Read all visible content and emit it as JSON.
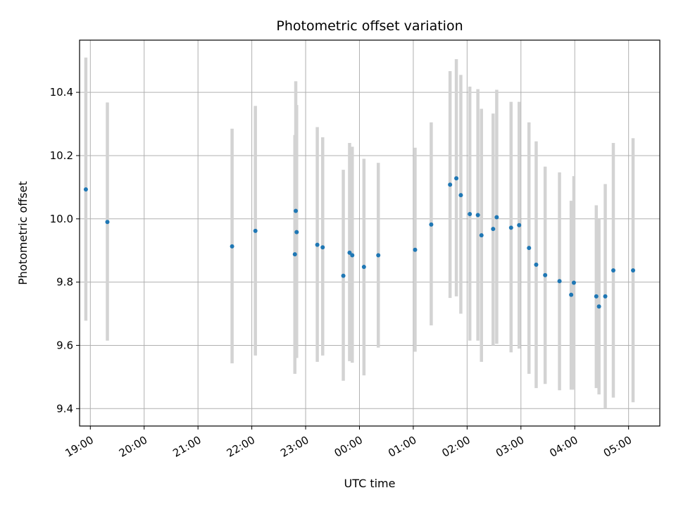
{
  "chart_data": {
    "type": "scatter",
    "title": "Photometric offset variation",
    "xlabel": "UTC time",
    "ylabel": "Photometric offset",
    "x_ticks": [
      "19:00",
      "20:00",
      "21:00",
      "22:00",
      "23:00",
      "00:00",
      "01:00",
      "02:00",
      "03:00",
      "04:00",
      "05:00"
    ],
    "x_tick_hours": [
      0,
      1,
      2,
      3,
      4,
      5,
      6,
      7,
      8,
      9,
      10
    ],
    "y_ticks": [
      "9.4",
      "9.6",
      "9.8",
      "10.0",
      "10.2",
      "10.4"
    ],
    "y_tick_values": [
      9.4,
      9.6,
      9.8,
      10.0,
      10.2,
      10.4
    ],
    "xlim_hours": [
      -0.2,
      10.58
    ],
    "ylim": [
      9.345,
      10.565
    ],
    "grid": true,
    "point_color": "#1f77b4",
    "errorbar_color": "#d3d3d3",
    "points": [
      {
        "t": "18:55",
        "y": 10.093,
        "low": 9.678,
        "high": 10.51
      },
      {
        "t": "19:19",
        "y": 9.99,
        "low": 9.615,
        "high": 10.368
      },
      {
        "t": "21:38",
        "y": 9.913,
        "low": 9.543,
        "high": 10.285
      },
      {
        "t": "22:04",
        "y": 9.962,
        "low": 9.568,
        "high": 10.357
      },
      {
        "t": "22:48",
        "y": 9.888,
        "low": 9.51,
        "high": 10.265
      },
      {
        "t": "22:49",
        "y": 10.025,
        "low": 9.655,
        "high": 10.435
      },
      {
        "t": "22:50",
        "y": 9.958,
        "low": 9.56,
        "high": 10.36
      },
      {
        "t": "23:13",
        "y": 9.918,
        "low": 9.548,
        "high": 10.29
      },
      {
        "t": "23:19",
        "y": 9.91,
        "low": 9.568,
        "high": 10.258
      },
      {
        "t": "23:42",
        "y": 9.82,
        "low": 9.488,
        "high": 10.155
      },
      {
        "t": "23:49",
        "y": 9.893,
        "low": 9.55,
        "high": 10.24
      },
      {
        "t": "23:52",
        "y": 9.885,
        "low": 9.545,
        "high": 10.228
      },
      {
        "t": "00:05",
        "y": 9.848,
        "low": 9.505,
        "high": 10.19
      },
      {
        "t": "00:21",
        "y": 9.885,
        "low": 9.593,
        "high": 10.177
      },
      {
        "t": "01:02",
        "y": 9.902,
        "low": 9.58,
        "high": 10.225
      },
      {
        "t": "01:20",
        "y": 9.982,
        "low": 9.663,
        "high": 10.305
      },
      {
        "t": "01:41",
        "y": 10.108,
        "low": 9.75,
        "high": 10.467
      },
      {
        "t": "01:48",
        "y": 10.128,
        "low": 9.755,
        "high": 10.505
      },
      {
        "t": "01:53",
        "y": 10.075,
        "low": 9.7,
        "high": 10.455
      },
      {
        "t": "02:03",
        "y": 10.015,
        "low": 9.615,
        "high": 10.418
      },
      {
        "t": "02:12",
        "y": 10.012,
        "low": 9.615,
        "high": 10.41
      },
      {
        "t": "02:16",
        "y": 9.948,
        "low": 9.548,
        "high": 10.348
      },
      {
        "t": "02:29",
        "y": 9.968,
        "low": 9.6,
        "high": 10.333
      },
      {
        "t": "02:33",
        "y": 10.005,
        "low": 9.605,
        "high": 10.408
      },
      {
        "t": "02:49",
        "y": 9.972,
        "low": 9.578,
        "high": 10.37
      },
      {
        "t": "02:58",
        "y": 9.98,
        "low": 9.59,
        "high": 10.37
      },
      {
        "t": "03:09",
        "y": 9.908,
        "low": 9.51,
        "high": 10.305
      },
      {
        "t": "03:17",
        "y": 9.855,
        "low": 9.465,
        "high": 10.245
      },
      {
        "t": "03:27",
        "y": 9.822,
        "low": 9.478,
        "high": 10.165
      },
      {
        "t": "03:43",
        "y": 9.803,
        "low": 9.458,
        "high": 10.147
      },
      {
        "t": "03:56",
        "y": 9.76,
        "low": 9.46,
        "high": 10.057
      },
      {
        "t": "03:59",
        "y": 9.798,
        "low": 9.46,
        "high": 10.135
      },
      {
        "t": "04:24",
        "y": 9.755,
        "low": 9.465,
        "high": 10.043
      },
      {
        "t": "04:27",
        "y": 9.723,
        "low": 9.445,
        "high": 10.0
      },
      {
        "t": "04:34",
        "y": 9.755,
        "low": 9.4,
        "high": 10.11
      },
      {
        "t": "04:43",
        "y": 9.837,
        "low": 9.435,
        "high": 10.24
      },
      {
        "t": "05:05",
        "y": 9.837,
        "low": 9.42,
        "high": 10.255
      }
    ]
  }
}
